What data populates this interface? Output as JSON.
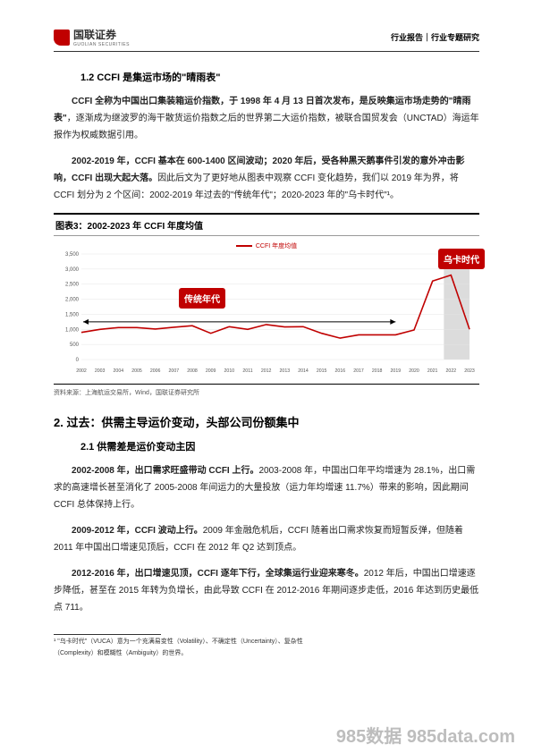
{
  "header": {
    "company": "国联证券",
    "company_en": "GUOLIAN SECURITIES",
    "right": "行业报告｜行业专题研究"
  },
  "sec1": {
    "heading": "1.2 CCFI 是集运市场的\"晴雨表\"",
    "p1a": "CCFI 全称为中国出口集装箱运价指数，于 1998 年 4 月 13 日首次发布，是反映集运市场走势的\"晴雨表\"",
    "p1b": "，逐渐成为继波罗的海干散货运价指数之后的世界第二大运价指数，被联合国贸发会（UNCTAD）海运年报作为权威数据引用。",
    "p2a": "2002-2019 年，CCFI 基本在 600-1400 区间波动；2020 年后，受各种黑天鹅事件引发的意外冲击影响，CCFI 出现大起大落。",
    "p2b": "因此后文为了更好地从图表中观察 CCFI 变化趋势，我们以 2019 年为界，将 CCFI 划分为 2 个区间：2002-2019 年过去的\"传统年代\"；2020-2023 年的\"乌卡时代\"¹。"
  },
  "chart": {
    "title": "图表3：2002-2023 年 CCFI 年度均值",
    "legend": "CCFI 年度均值",
    "label_left": "传统年代",
    "label_right": "乌卡时代",
    "source": "资料来源：上海航运交易所，Wind，国联证券研究所",
    "y_ticks": [
      "3,500",
      "3,000",
      "2,500",
      "2,000",
      "1,500",
      "1,000",
      "500",
      "0"
    ],
    "x_ticks": [
      "2002",
      "2003",
      "2004",
      "2005",
      "2006",
      "2007",
      "2008",
      "2009",
      "2010",
      "2011",
      "2012",
      "2013",
      "2014",
      "2015",
      "2016",
      "2017",
      "2018",
      "2019",
      "2020",
      "2021",
      "2022",
      "2023"
    ],
    "series_values": [
      900,
      1000,
      1060,
      1060,
      1010,
      1070,
      1120,
      870,
      1090,
      1000,
      1160,
      1080,
      1090,
      870,
      710,
      820,
      820,
      820,
      980,
      2600,
      2800,
      1000
    ],
    "y_max": 3500,
    "line_color": "#c00000",
    "band_color": "#bfbfbf",
    "grid_color": "#e6e6e6",
    "arrow_color": "#000000"
  },
  "sec2": {
    "h2": "2. 过去：供需主导运价变动，头部公司份额集中",
    "heading": "2.1 供需差是运价变动主因",
    "p1a": "2002-2008 年，出口需求旺盛带动 CCFI 上行。",
    "p1b": "2003-2008 年，中国出口年平均增速为 28.1%，出口需求的高速增长甚至消化了 2005-2008 年间运力的大量投放（运力年均增速 11.7%）带来的影响，因此期间 CCFI 总体保持上行。",
    "p2a": "2009-2012 年，CCFI 波动上行。",
    "p2b": "2009 年金融危机后，CCFI 随着出口需求恢复而短暂反弹，但随着 2011 年中国出口增速见顶后，CCFI 在 2012 年 Q2 达到顶点。",
    "p3a": "2012-2016 年，出口增速见顶，CCFI 逐年下行，全球集运行业迎来寒冬。",
    "p3b": "2012 年后，中国出口增速逐步降低，甚至在 2015 年转为负增长，由此导致 CCFI 在 2012-2016 年期间逐步走低，2016 年达到历史最低点 711。"
  },
  "footnote": {
    "line1": "¹ \"乌卡时代\"（VUCA）意为一个充满易变性（Volatility）、不确定性（Uncertainty）、复杂性",
    "line2": "（Complexity）和模糊性（Ambiguity）的世界。"
  },
  "watermark": "985数据 985data.com"
}
